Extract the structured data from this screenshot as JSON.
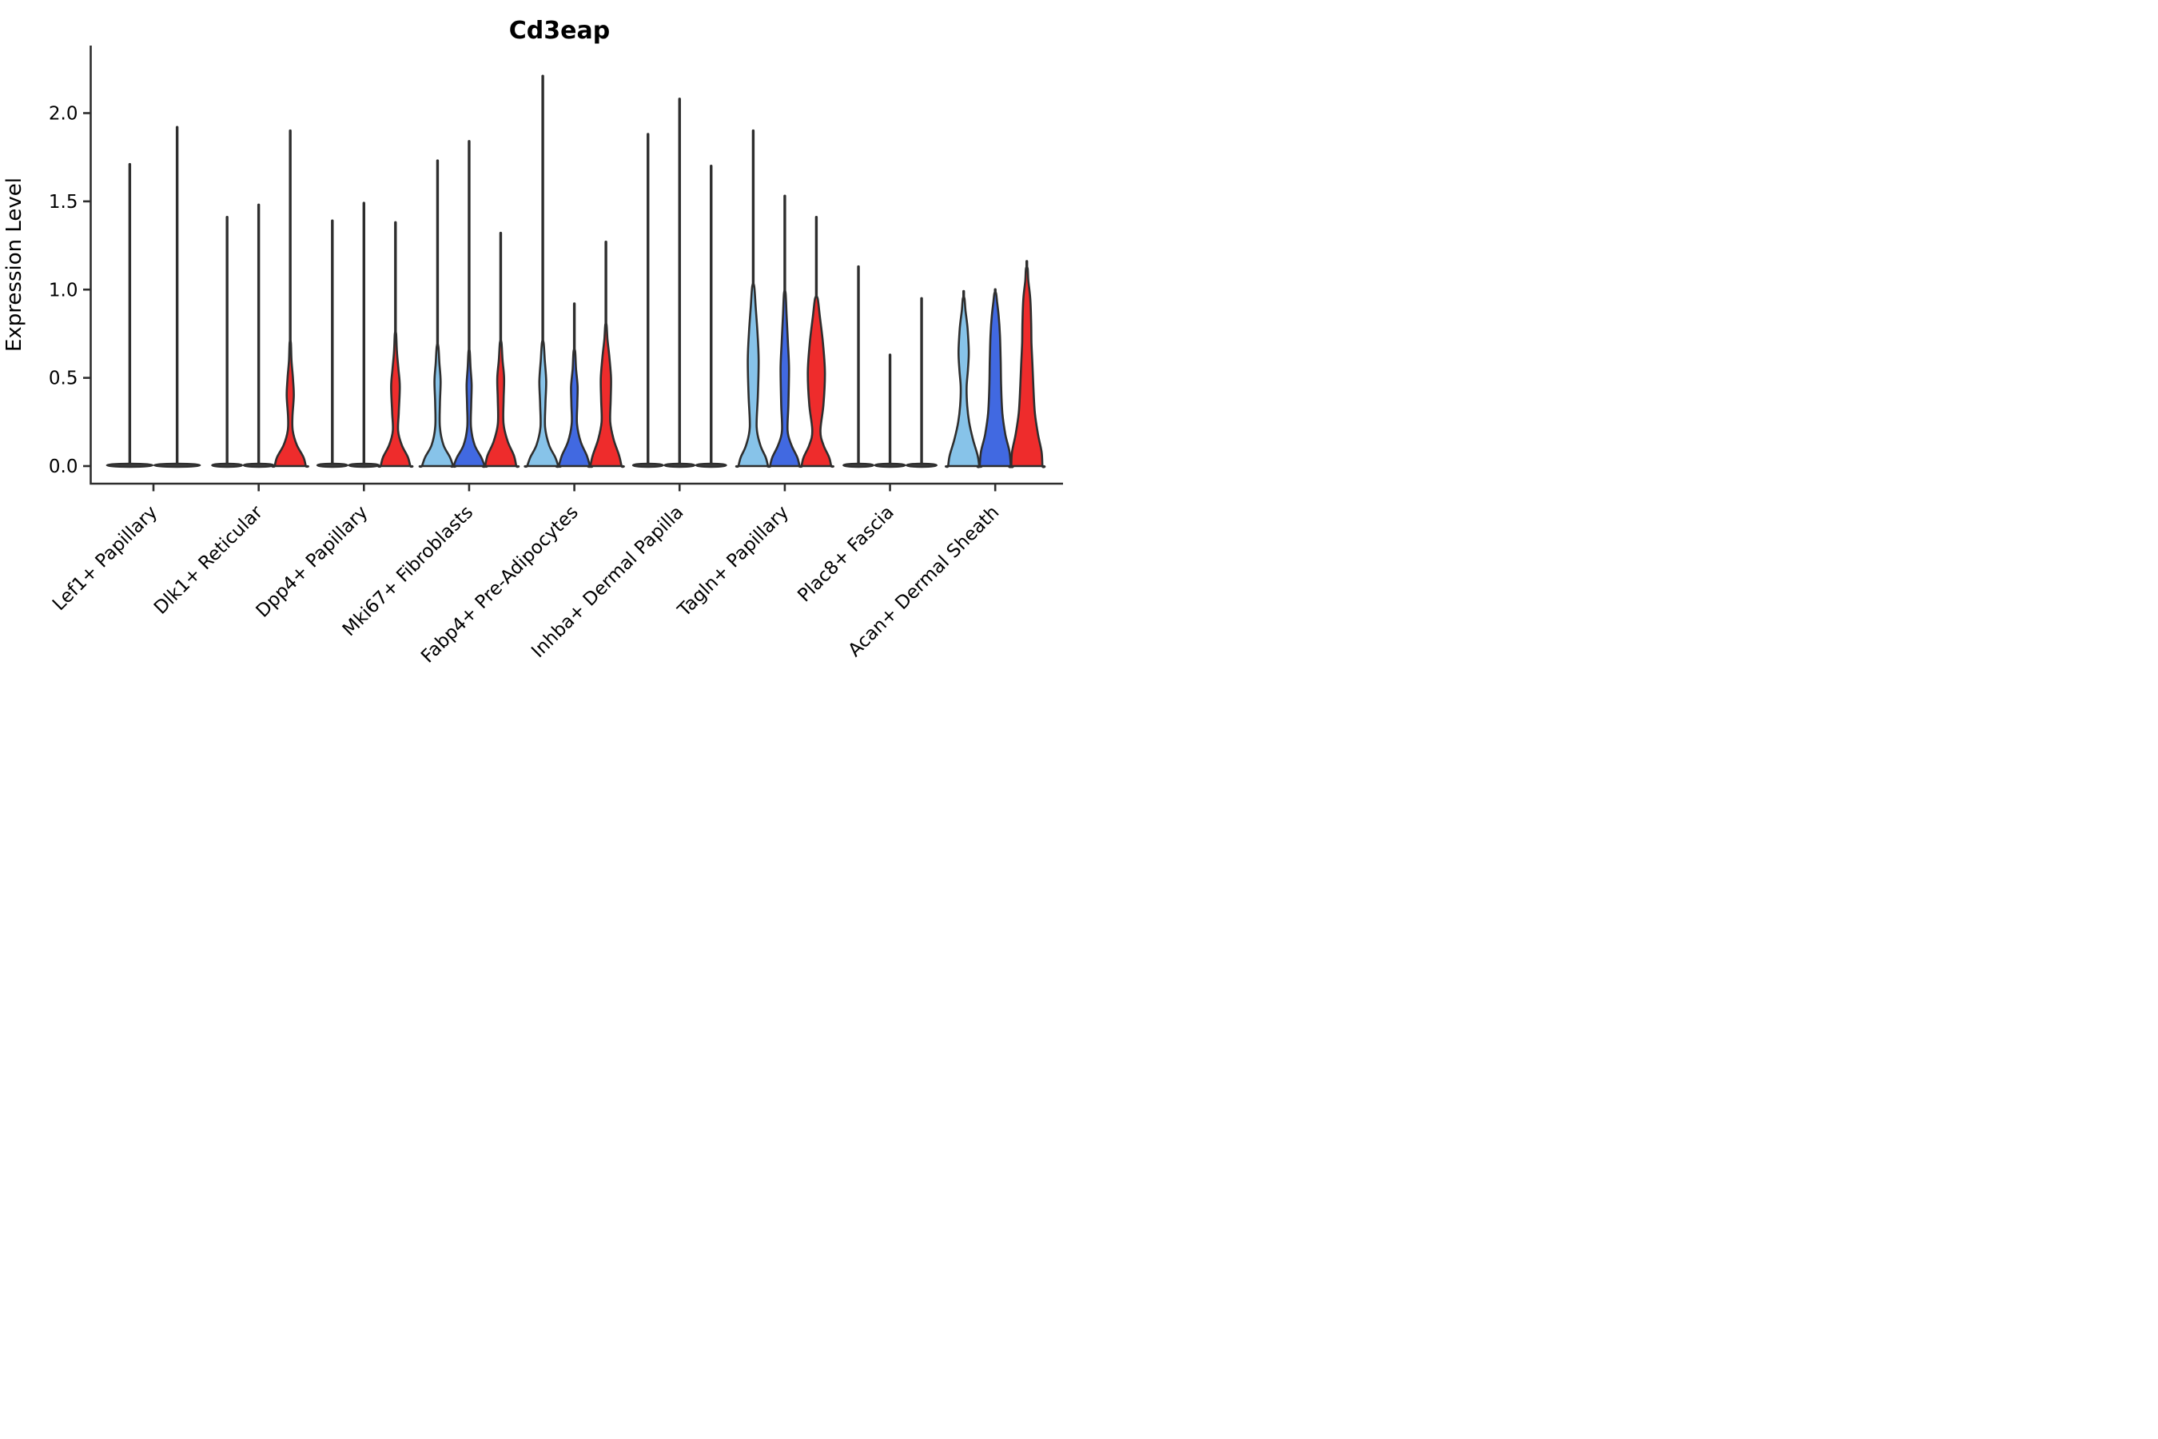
{
  "title": "Cd3eap",
  "ylabel": "Expression Level",
  "colors": {
    "lightblue": "#87C3E9",
    "blue": "#4169E1",
    "red": "#EE2C2C",
    "outline": "#2E2E2E",
    "flat_fill": "#3A3A3A"
  },
  "chart_data": {
    "type": "violin",
    "title": "Cd3eap",
    "xlabel": "",
    "ylabel": "Expression Level",
    "ylim": [
      -0.1,
      2.38
    ],
    "yticks": [
      0.0,
      0.5,
      1.0,
      1.5,
      2.0
    ],
    "ytick_labels": [
      "0.0",
      "0.5",
      "1.0",
      "1.5",
      "2.0"
    ],
    "grid": false,
    "legend": "none",
    "categories": [
      "Lef1+ Papillary",
      "Dlk1+ Reticular",
      "Dpp4+ Papillary",
      "Mki67+ Fibroblasts",
      "Fabp4+ Pre-Adipocytes",
      "Inhba+ Dermal Papilla",
      "Tagln+ Papillary",
      "Plac8+ Fascia",
      "Acan+ Dermal Sheath"
    ],
    "series": [
      {
        "name": "lightblue",
        "max_expression": [
          1.71,
          1.41,
          1.39,
          1.73,
          2.21,
          1.88,
          1.9,
          1.13,
          0.99
        ]
      },
      {
        "name": "blue",
        "max_expression": [
          1.92,
          1.48,
          1.49,
          1.84,
          0.92,
          2.08,
          1.53,
          0.63,
          1.0
        ]
      },
      {
        "name": "red",
        "max_expression": [
          null,
          1.9,
          1.38,
          1.32,
          1.27,
          1.7,
          1.41,
          0.95,
          1.16
        ]
      }
    ],
    "category_details": [
      {
        "label": "Lef1+ Papillary",
        "violins": [
          {
            "color_key": "lightblue",
            "max": 1.71,
            "flat": true
          },
          {
            "color_key": "blue",
            "max": 1.92,
            "flat": true
          }
        ]
      },
      {
        "label": "Dlk1+ Reticular",
        "violins": [
          {
            "color_key": "lightblue",
            "max": 1.41,
            "flat": true
          },
          {
            "color_key": "blue",
            "max": 1.48,
            "flat": true
          },
          {
            "color_key": "red",
            "max": 1.9,
            "flat": false,
            "profile": [
              [
                0,
                1.0
              ],
              [
                0.05,
                0.85
              ],
              [
                0.12,
                0.42
              ],
              [
                0.2,
                0.16
              ],
              [
                0.28,
                0.14
              ],
              [
                0.4,
                0.23
              ],
              [
                0.5,
                0.17
              ],
              [
                0.6,
                0.08
              ],
              [
                0.7,
                0.04
              ]
            ]
          }
        ]
      },
      {
        "label": "Dpp4+ Papillary",
        "violins": [
          {
            "color_key": "lightblue",
            "max": 1.39,
            "flat": true
          },
          {
            "color_key": "blue",
            "max": 1.49,
            "flat": true
          },
          {
            "color_key": "red",
            "max": 1.38,
            "flat": false,
            "profile": [
              [
                0,
                0.95
              ],
              [
                0.05,
                0.8
              ],
              [
                0.12,
                0.4
              ],
              [
                0.2,
                0.17
              ],
              [
                0.3,
                0.21
              ],
              [
                0.45,
                0.28
              ],
              [
                0.55,
                0.19
              ],
              [
                0.65,
                0.09
              ],
              [
                0.75,
                0.04
              ]
            ]
          }
        ]
      },
      {
        "label": "Mki67+ Fibroblasts",
        "violins": [
          {
            "color_key": "lightblue",
            "max": 1.73,
            "flat": false,
            "profile": [
              [
                0,
                1.0
              ],
              [
                0.05,
                0.8
              ],
              [
                0.12,
                0.38
              ],
              [
                0.22,
                0.15
              ],
              [
                0.35,
                0.15
              ],
              [
                0.48,
                0.2
              ],
              [
                0.58,
                0.12
              ],
              [
                0.68,
                0.05
              ]
            ]
          },
          {
            "color_key": "blue",
            "max": 1.84,
            "flat": false,
            "profile": [
              [
                0,
                1.0
              ],
              [
                0.05,
                0.78
              ],
              [
                0.12,
                0.35
              ],
              [
                0.22,
                0.12
              ],
              [
                0.34,
                0.13
              ],
              [
                0.46,
                0.16
              ],
              [
                0.56,
                0.09
              ],
              [
                0.65,
                0.04
              ]
            ]
          },
          {
            "color_key": "red",
            "max": 1.32,
            "flat": false,
            "profile": [
              [
                0,
                1.0
              ],
              [
                0.06,
                0.85
              ],
              [
                0.14,
                0.45
              ],
              [
                0.24,
                0.18
              ],
              [
                0.38,
                0.19
              ],
              [
                0.5,
                0.22
              ],
              [
                0.6,
                0.12
              ],
              [
                0.7,
                0.05
              ]
            ]
          }
        ]
      },
      {
        "label": "Fabp4+ Pre-Adipocytes",
        "violins": [
          {
            "color_key": "lightblue",
            "max": 2.21,
            "flat": false,
            "profile": [
              [
                0,
                1.0
              ],
              [
                0.05,
                0.8
              ],
              [
                0.12,
                0.4
              ],
              [
                0.22,
                0.15
              ],
              [
                0.35,
                0.17
              ],
              [
                0.48,
                0.22
              ],
              [
                0.6,
                0.13
              ],
              [
                0.7,
                0.05
              ]
            ]
          },
          {
            "color_key": "blue",
            "max": 0.92,
            "flat": false,
            "profile": [
              [
                0,
                1.0
              ],
              [
                0.06,
                0.8
              ],
              [
                0.14,
                0.4
              ],
              [
                0.24,
                0.17
              ],
              [
                0.35,
                0.19
              ],
              [
                0.45,
                0.21
              ],
              [
                0.55,
                0.11
              ],
              [
                0.65,
                0.05
              ]
            ]
          },
          {
            "color_key": "red",
            "max": 1.27,
            "flat": false,
            "profile": [
              [
                0,
                1.0
              ],
              [
                0.06,
                0.85
              ],
              [
                0.15,
                0.5
              ],
              [
                0.25,
                0.28
              ],
              [
                0.38,
                0.31
              ],
              [
                0.5,
                0.33
              ],
              [
                0.62,
                0.22
              ],
              [
                0.72,
                0.1
              ],
              [
                0.8,
                0.04
              ]
            ]
          }
        ]
      },
      {
        "label": "Inhba+ Dermal Papilla",
        "violins": [
          {
            "color_key": "lightblue",
            "max": 1.88,
            "flat": true
          },
          {
            "color_key": "blue",
            "max": 2.08,
            "flat": true
          },
          {
            "color_key": "red",
            "max": 1.7,
            "flat": true
          }
        ]
      },
      {
        "label": "Tagln+ Papillary",
        "violins": [
          {
            "color_key": "lightblue",
            "max": 1.9,
            "flat": false,
            "profile": [
              [
                0,
                0.95
              ],
              [
                0.05,
                0.8
              ],
              [
                0.12,
                0.45
              ],
              [
                0.22,
                0.22
              ],
              [
                0.4,
                0.3
              ],
              [
                0.6,
                0.35
              ],
              [
                0.75,
                0.28
              ],
              [
                0.9,
                0.16
              ],
              [
                1.02,
                0.06
              ]
            ]
          },
          {
            "color_key": "blue",
            "max": 1.53,
            "flat": false,
            "profile": [
              [
                0,
                0.95
              ],
              [
                0.05,
                0.8
              ],
              [
                0.12,
                0.42
              ],
              [
                0.2,
                0.18
              ],
              [
                0.35,
                0.23
              ],
              [
                0.55,
                0.27
              ],
              [
                0.7,
                0.2
              ],
              [
                0.85,
                0.12
              ],
              [
                0.98,
                0.05
              ]
            ]
          },
          {
            "color_key": "red",
            "max": 1.41,
            "flat": false,
            "profile": [
              [
                0,
                0.95
              ],
              [
                0.05,
                0.82
              ],
              [
                0.12,
                0.45
              ],
              [
                0.2,
                0.26
              ],
              [
                0.35,
                0.46
              ],
              [
                0.53,
                0.55
              ],
              [
                0.7,
                0.42
              ],
              [
                0.85,
                0.22
              ],
              [
                0.95,
                0.08
              ]
            ]
          }
        ]
      },
      {
        "label": "Plac8+ Fascia",
        "violins": [
          {
            "color_key": "lightblue",
            "max": 1.13,
            "flat": true
          },
          {
            "color_key": "blue",
            "max": 0.63,
            "flat": true
          },
          {
            "color_key": "red",
            "max": 0.95,
            "flat": true
          }
        ]
      },
      {
        "label": "Acan+ Dermal Sheath",
        "violins": [
          {
            "color_key": "lightblue",
            "max": 0.99,
            "flat": false,
            "profile": [
              [
                0,
                1.0
              ],
              [
                0.06,
                0.9
              ],
              [
                0.15,
                0.6
              ],
              [
                0.25,
                0.35
              ],
              [
                0.35,
                0.22
              ],
              [
                0.45,
                0.19
              ],
              [
                0.55,
                0.28
              ],
              [
                0.65,
                0.33
              ],
              [
                0.78,
                0.25
              ],
              [
                0.88,
                0.12
              ],
              [
                0.95,
                0.05
              ]
            ]
          },
          {
            "color_key": "blue",
            "max": 1.0,
            "flat": false,
            "profile": [
              [
                0,
                1.0
              ],
              [
                0.08,
                0.92
              ],
              [
                0.18,
                0.65
              ],
              [
                0.3,
                0.46
              ],
              [
                0.45,
                0.38
              ],
              [
                0.6,
                0.35
              ],
              [
                0.75,
                0.3
              ],
              [
                0.85,
                0.22
              ],
              [
                0.93,
                0.12
              ],
              [
                0.98,
                0.05
              ]
            ]
          },
          {
            "color_key": "red",
            "max": 1.16,
            "flat": false,
            "profile": [
              [
                0,
                1.0
              ],
              [
                0.08,
                0.95
              ],
              [
                0.18,
                0.72
              ],
              [
                0.3,
                0.52
              ],
              [
                0.45,
                0.42
              ],
              [
                0.58,
                0.36
              ],
              [
                0.7,
                0.3
              ],
              [
                0.82,
                0.28
              ],
              [
                0.95,
                0.22
              ],
              [
                1.05,
                0.1
              ],
              [
                1.12,
                0.05
              ]
            ]
          }
        ]
      }
    ]
  }
}
